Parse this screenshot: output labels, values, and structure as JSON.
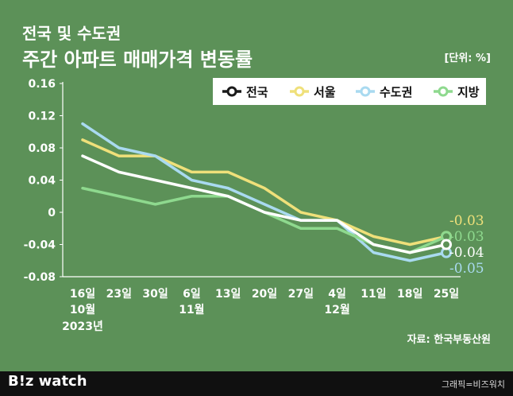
{
  "header": {
    "title_line1": "전국 및 수도권",
    "title_line2": "주간 아파트 매매가격 변동률",
    "unit": "[단위: %]"
  },
  "source": "자료: 한국부동산원",
  "footer": {
    "logo": "B!z watch",
    "credit": "그래픽=비즈워치"
  },
  "colors": {
    "background": "#5c9158",
    "national": "#ffffff",
    "seoul": "#efe07a",
    "capital": "#a9daf0",
    "regional": "#8ed98e"
  },
  "chart_data": {
    "type": "line",
    "categories": [
      "16일",
      "23일",
      "30일",
      "6일",
      "13일",
      "20일",
      "27일",
      "4일",
      "11일",
      "18일",
      "25일"
    ],
    "sub_labels": [
      "10월",
      "",
      "",
      "11월",
      "",
      "",
      "",
      "12월",
      "",
      "",
      ""
    ],
    "year_label": "2023년",
    "ylim": [
      -0.08,
      0.16
    ],
    "yticks": [
      -0.08,
      -0.04,
      0,
      0.04,
      0.08,
      0.12,
      0.16
    ],
    "ytick_labels": [
      "-0.08",
      "-0.04",
      "0",
      "0.04",
      "0.08",
      "0.12",
      "0.16"
    ],
    "legend_position": "top-right",
    "series": [
      {
        "key": "seoul",
        "name": "서울",
        "color": "#efe07a",
        "values": [
          0.09,
          0.07,
          0.07,
          0.05,
          0.05,
          0.03,
          0.0,
          -0.01,
          -0.03,
          -0.04,
          -0.03
        ],
        "end_label": "-0.03"
      },
      {
        "key": "capital",
        "name": "수도권",
        "color": "#a9daf0",
        "values": [
          0.11,
          0.08,
          0.07,
          0.04,
          0.03,
          0.01,
          -0.01,
          -0.01,
          -0.05,
          -0.06,
          -0.05
        ],
        "end_label": "-0.05"
      },
      {
        "key": "regional",
        "name": "지방",
        "color": "#8ed98e",
        "values": [
          0.03,
          0.02,
          0.01,
          0.02,
          0.02,
          0.0,
          -0.02,
          -0.02,
          -0.04,
          -0.05,
          -0.03
        ],
        "end_label": "-0.03"
      },
      {
        "key": "national",
        "name": "전국",
        "color": "#ffffff",
        "values": [
          0.07,
          0.05,
          0.04,
          0.03,
          0.02,
          0.0,
          -0.01,
          -0.01,
          -0.04,
          -0.05,
          -0.04
        ],
        "end_label": "-0.04"
      }
    ],
    "legend_order": [
      "national",
      "seoul",
      "capital",
      "regional"
    ]
  }
}
